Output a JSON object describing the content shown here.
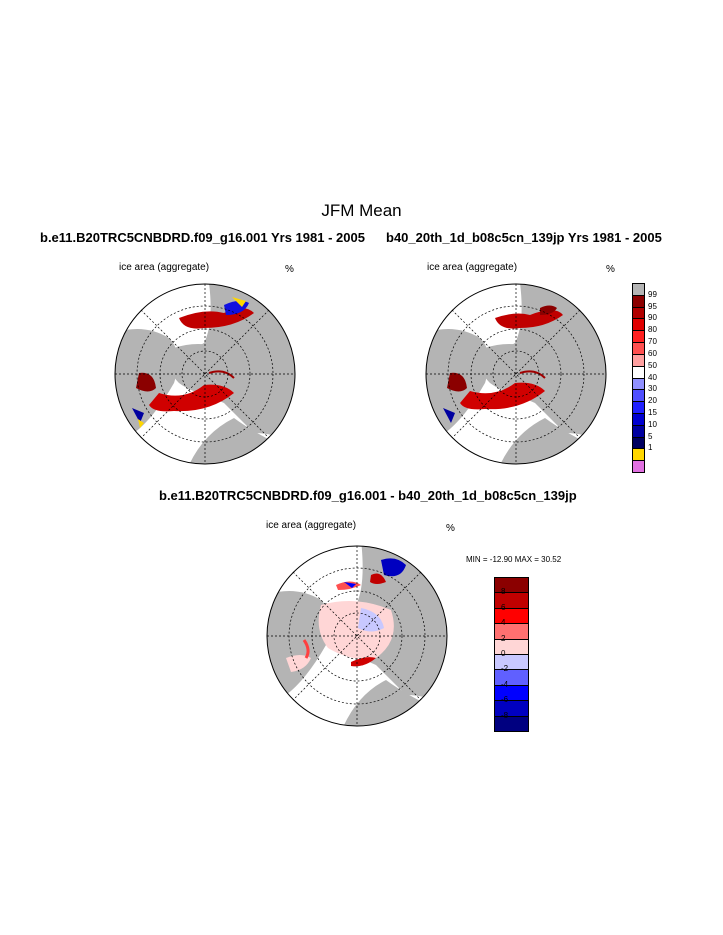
{
  "title": "JFM Mean",
  "panels": [
    {
      "case": "b.e11.B20TRC5CNBDRD.f09_g16.001  Yrs 1981 - 2005",
      "variable": "ice area  (aggregate)",
      "units": "%"
    },
    {
      "case": "b40_20th_1d_b08c5cn_139jp  Yrs 1981 - 2005",
      "variable": "ice area  (aggregate)",
      "units": "%"
    }
  ],
  "diff_panel": {
    "title": "b.e11.B20TRC5CNBDRD.f09_g16.001 - b40_20th_1d_b08c5cn_139jp",
    "variable": "ice area  (aggregate)",
    "units": "%",
    "minmax": "MIN = -12.90 MAX =  30.52"
  },
  "colorbar_main": {
    "labels": [
      "99",
      "95",
      "90",
      "80",
      "70",
      "60",
      "50",
      "40",
      "30",
      "20",
      "15",
      "10",
      "5",
      "1"
    ],
    "colors": [
      "#b4b4b4",
      "#8b0000",
      "#b00000",
      "#e00000",
      "#ff2020",
      "#ff5050",
      "#ffa0a0",
      "#ffffff",
      "#9090ff",
      "#5050ff",
      "#2020ff",
      "#0000d0",
      "#0000a0",
      "#000060",
      "#ffd700",
      "#e070e0"
    ]
  },
  "colorbar_diff": {
    "labels": [
      "8",
      "6",
      "4",
      "2",
      "0",
      "-2",
      "-4",
      "-6",
      "-8"
    ],
    "colors": [
      "#8b0000",
      "#c00000",
      "#ff0000",
      "#ff7070",
      "#ffd6d6",
      "#c8c8ff",
      "#6060ff",
      "#0000ff",
      "#0000c0",
      "#000080"
    ]
  }
}
